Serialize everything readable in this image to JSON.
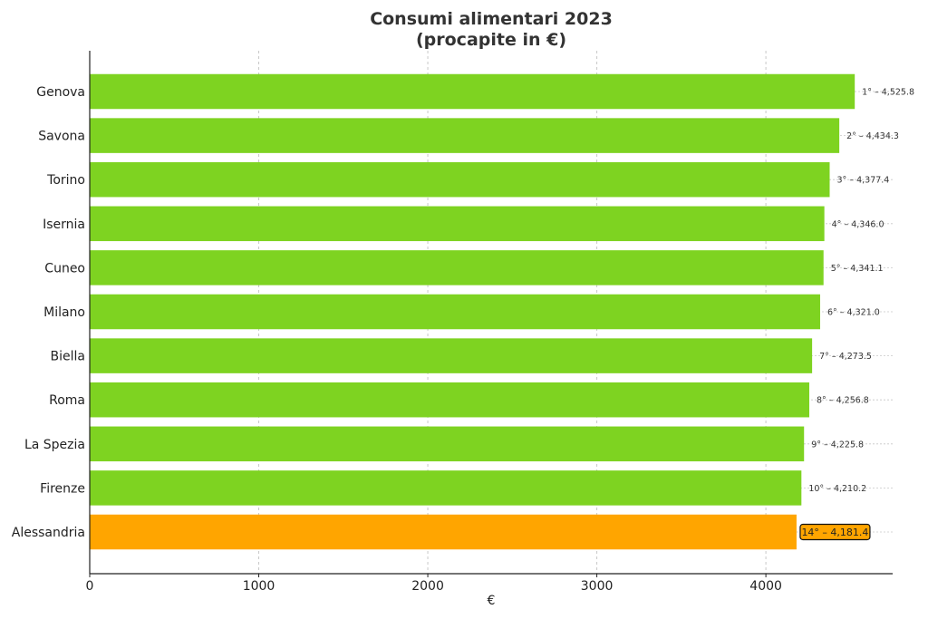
{
  "chart_data": {
    "type": "bar",
    "orientation": "horizontal",
    "title_line1": "Consumi alimentari 2023",
    "title_line2": "(procapite in €)",
    "xlabel": "€",
    "ylabel": "",
    "xlim": [
      0,
      4750
    ],
    "xticks": [
      0,
      1000,
      2000,
      3000,
      4000
    ],
    "grid": "x-dashed",
    "categories": [
      "Genova",
      "Savona",
      "Torino",
      "Isernia",
      "Cuneo",
      "Milano",
      "Biella",
      "Roma",
      "La Spezia",
      "Firenze",
      "Alessandria"
    ],
    "values": [
      4525.8,
      4434.3,
      4377.4,
      4346.0,
      4341.1,
      4321.0,
      4273.5,
      4256.8,
      4225.8,
      4210.2,
      4181.4
    ],
    "data_labels": [
      "1° – 4,525.8",
      "2° – 4,434.3",
      "3° – 4,377.4",
      "4° – 4,346.0",
      "5° – 4,341.1",
      "6° – 4,321.0",
      "7° – 4,273.5",
      "8° – 4,256.8",
      "9° – 4,225.8",
      "10° – 4,210.2",
      "14° – 4,181.4"
    ],
    "highlight_index": 10,
    "colors": {
      "bar": "#7ed321",
      "highlight": "#ffa500",
      "text": "#222222",
      "title": "#333333",
      "grid": "#c8c8c8",
      "axis": "#222222"
    }
  }
}
